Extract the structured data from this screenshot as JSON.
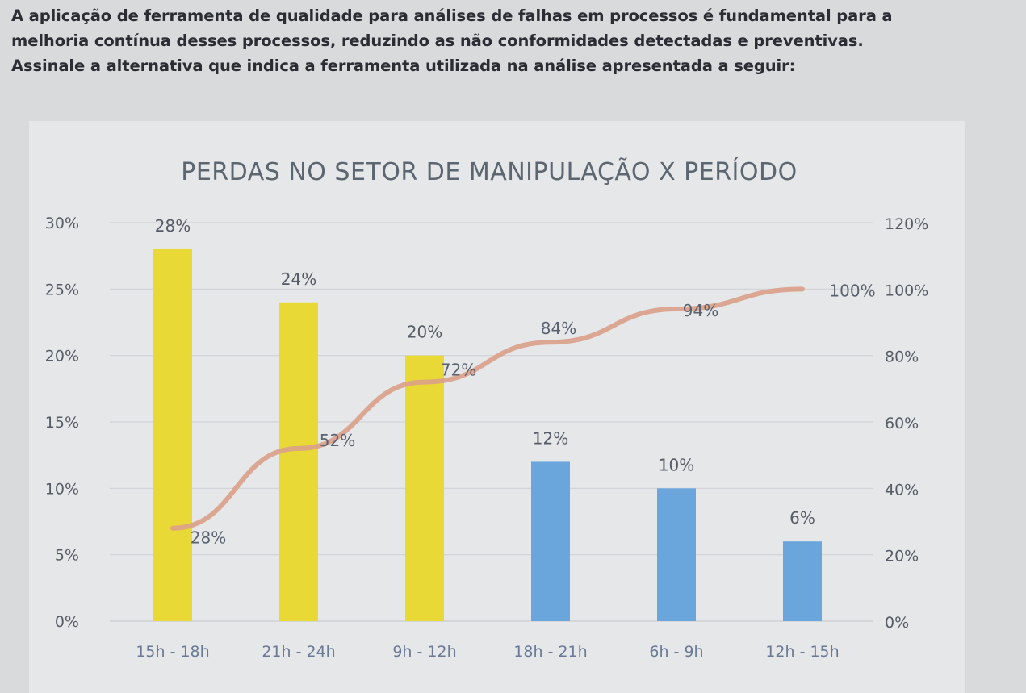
{
  "question": {
    "line1": "A aplicação de ferramenta de qualidade para análises de falhas em processos é fundamental para a",
    "line2": "melhoria contínua desses processos, reduzindo as não conformidades detectadas e preventivas.",
    "line3": "Assinale a alternativa que indica a ferramenta utilizada na análise apresentada a seguir:"
  },
  "chart_data": {
    "type": "bar",
    "title": "PERDAS NO SETOR DE MANIPULAÇÃO X PERÍODO",
    "categories": [
      "15h - 18h",
      "21h - 24h",
      "9h - 12h",
      "18h - 21h",
      "6h - 9h",
      "12h - 15h"
    ],
    "series": [
      {
        "type": "bar",
        "axis": "left",
        "values": [
          28,
          24,
          20,
          12,
          10,
          6
        ],
        "labels": [
          "28%",
          "24%",
          "20%",
          "12%",
          "10%",
          "6%"
        ],
        "colors": [
          "#e8d936",
          "#e8d936",
          "#e8d936",
          "#6aa6dc",
          "#6aa6dc",
          "#6aa6dc"
        ]
      },
      {
        "type": "line",
        "axis": "right",
        "values": [
          28,
          52,
          72,
          84,
          94,
          100
        ],
        "labels": [
          "28%",
          "52%",
          "72%",
          "84%",
          "94%",
          "100%"
        ],
        "color": "#d9a08a"
      }
    ],
    "y_left": {
      "min": 0,
      "max": 30,
      "ticks": [
        "0%",
        "5%",
        "10%",
        "15%",
        "20%",
        "25%",
        "30%"
      ]
    },
    "y_right": {
      "min": 0,
      "max": 120,
      "ticks": [
        "0%",
        "20%",
        "40%",
        "60%",
        "80%",
        "100%",
        "120%"
      ]
    },
    "grid": true,
    "legend": "none"
  }
}
